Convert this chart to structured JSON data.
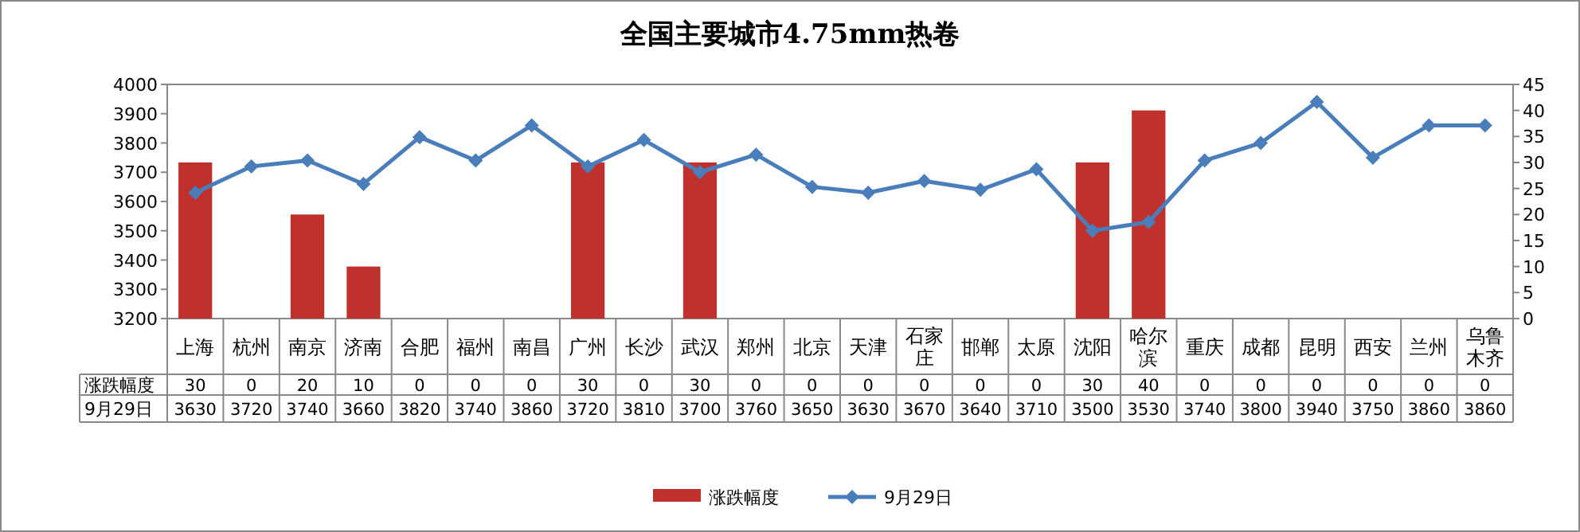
{
  "chart_data": {
    "type": "bar",
    "title": "全国主要城市4.75mm热卷",
    "categories": [
      "上海",
      "杭州",
      "南京",
      "济南",
      "合肥",
      "福州",
      "南昌",
      "广州",
      "长沙",
      "武汉",
      "郑州",
      "北京",
      "天津",
      "石家庄",
      "邯郸",
      "太原",
      "沈阳",
      "哈尔滨",
      "重庆",
      "成都",
      "昆明",
      "西安",
      "兰州",
      "乌鲁木齐"
    ],
    "series": [
      {
        "name": "涨跌幅度",
        "axis": "y2",
        "color": "#c0302c",
        "values": [
          30,
          0,
          20,
          10,
          0,
          0,
          0,
          30,
          0,
          30,
          0,
          0,
          0,
          0,
          0,
          0,
          30,
          40,
          0,
          0,
          0,
          0,
          0,
          0
        ]
      },
      {
        "name": "9月29日",
        "type": "line",
        "color": "#4a7ebb",
        "marker": "diamond",
        "values": [
          3630,
          3720,
          3740,
          3660,
          3820,
          3740,
          3860,
          3720,
          3810,
          3700,
          3760,
          3650,
          3630,
          3670,
          3640,
          3710,
          3500,
          3530,
          3740,
          3800,
          3940,
          3750,
          3860,
          3860
        ]
      }
    ],
    "ylim": [
      3200,
      4000
    ],
    "yticks": [
      3200,
      3300,
      3400,
      3500,
      3600,
      3700,
      3800,
      3900,
      4000
    ],
    "y2lim": [
      0,
      45
    ],
    "y2ticks": [
      0,
      5,
      10,
      15,
      20,
      25,
      30,
      35,
      40,
      45
    ],
    "data_labels": true,
    "legend": "bottom"
  }
}
